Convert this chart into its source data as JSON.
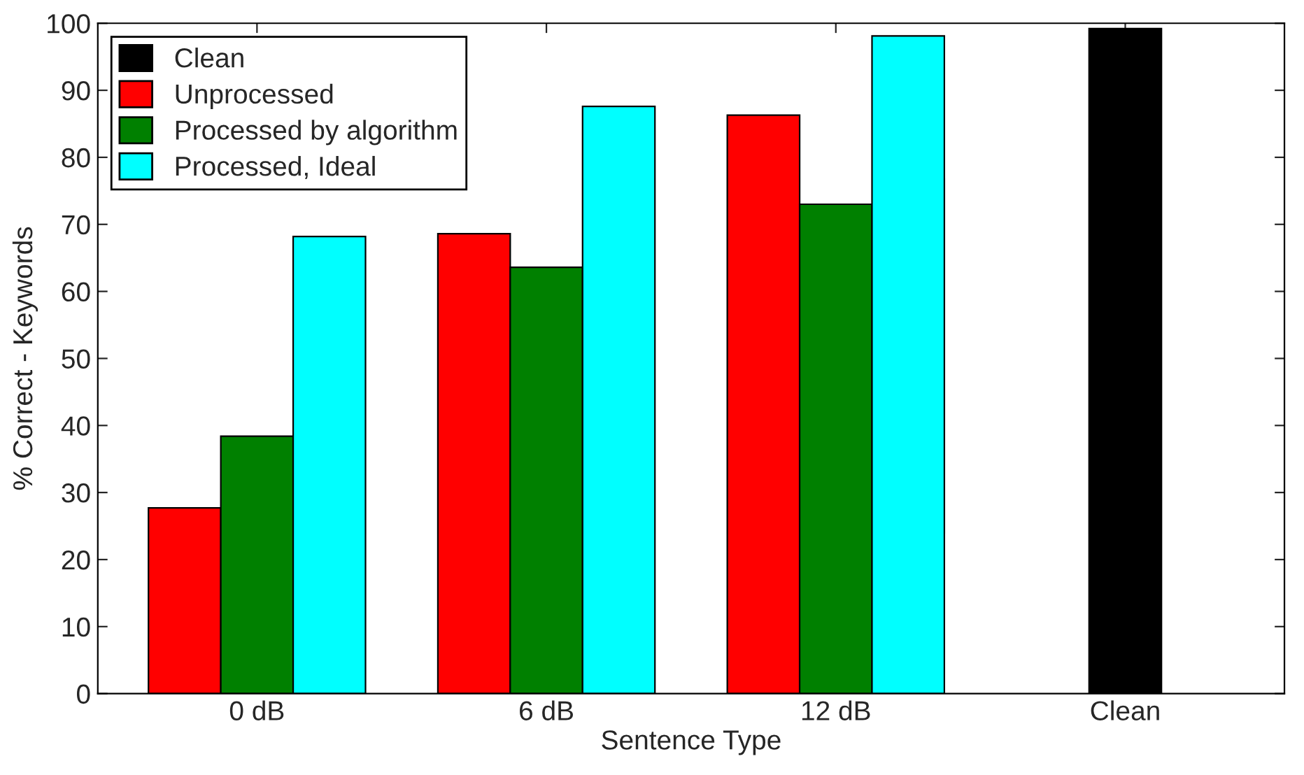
{
  "chart_data": {
    "type": "bar",
    "xlabel": "Sentence Type",
    "ylabel": "% Correct - Keywords",
    "categories": [
      "0 dB",
      "6 dB",
      "12 dB",
      "Clean"
    ],
    "series": [
      {
        "name": "Clean",
        "color": "#000000",
        "values": [
          null,
          null,
          null,
          99.2
        ]
      },
      {
        "name": "Unprocessed",
        "color": "#ff0000",
        "values": [
          27.7,
          68.6,
          86.3,
          null
        ]
      },
      {
        "name": "Processed by algorithm",
        "color": "#008000",
        "values": [
          38.4,
          63.6,
          73.0,
          null
        ]
      },
      {
        "name": "Processed, Ideal",
        "color": "#00ffff",
        "values": [
          68.2,
          87.6,
          98.1,
          null
        ]
      }
    ],
    "ylim": [
      0,
      100
    ],
    "yticks": [
      0,
      10,
      20,
      30,
      40,
      50,
      60,
      70,
      80,
      90,
      100
    ],
    "grid": false,
    "legend": "top left"
  }
}
